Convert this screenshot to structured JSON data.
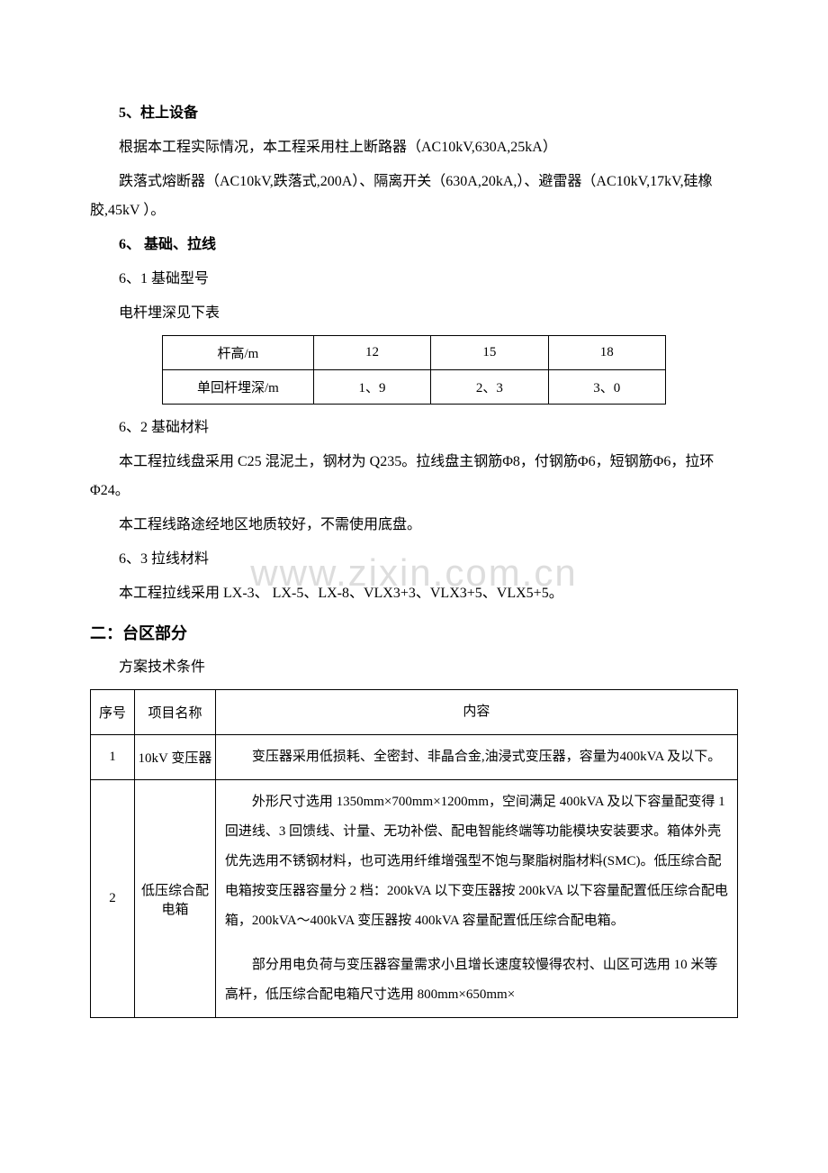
{
  "watermark": "www.zixin.com.cn",
  "sec5": {
    "title": "5、柱上设备",
    "p1": "根据本工程实际情况，本工程采用柱上断路器（AC10kV,630A,25kA）",
    "p2": "跌落式熔断器（AC10kV,跌落式,200A）、隔离开关（630A,20kA,）、避雷器（AC10kV,17kV,硅橡胶,45kV ）。"
  },
  "sec6": {
    "title": "6、 基础、拉线",
    "s61": "6、1 基础型号",
    "s61_p1": "电杆埋深见下表",
    "table1": {
      "headers": [
        "杆高/m",
        "12",
        "15",
        "18"
      ],
      "row": [
        "单回杆埋深/m",
        "1、9",
        "2、3",
        "3、0"
      ]
    },
    "s62": "6、2 基础材料",
    "s62_p1": "本工程拉线盘采用 C25 混泥土，钢材为 Q235。拉线盘主钢筋Φ8，付钢筋Φ6，短钢筋Φ6，拉环Φ24。",
    "s62_p2": "本工程线路途经地区地质较好，不需使用底盘。",
    "s63": "6、3 拉线材料",
    "s63_p1": "本工程拉线采用 LX-3、 LX-5、LX-8、VLX3+3、VLX3+5、VLX5+5。"
  },
  "sec_tq": {
    "title": "二：台区部分",
    "subtitle": "方案技术条件",
    "table2": {
      "header": [
        "序号",
        "项目名称",
        "内容"
      ],
      "rows": [
        {
          "seq": "1",
          "name": "10kV 变压器",
          "content": "变压器采用低损耗、全密封、非晶合金,油浸式变压器，容量为400kVA 及以下。"
        },
        {
          "seq": "2",
          "name": "低压综合配电箱",
          "content_p1": "外形尺寸选用 1350mm×700mm×1200mm，空间满足 400kVA 及以下容量配变得 1 回进线、3 回馈线、计量、无功补偿、配电智能终端等功能模块安装要求。箱体外壳优先选用不锈钢材料，也可选用纤维增强型不饱与聚脂树脂材料(SMC)。低压综合配电箱按变压器容量分 2 档：200kVA 以下变压器按 200kVA 以下容量配置低压综合配电箱，200kVA～400kVA 变压器按 400kVA 容量配置低压综合配电箱。",
          "content_p2": "部分用电负荷与变压器容量需求小且增长速度较慢得农村、山区可选用 10 米等高杆，低压综合配电箱尺寸选用 800mm×650mm×"
        }
      ]
    }
  }
}
